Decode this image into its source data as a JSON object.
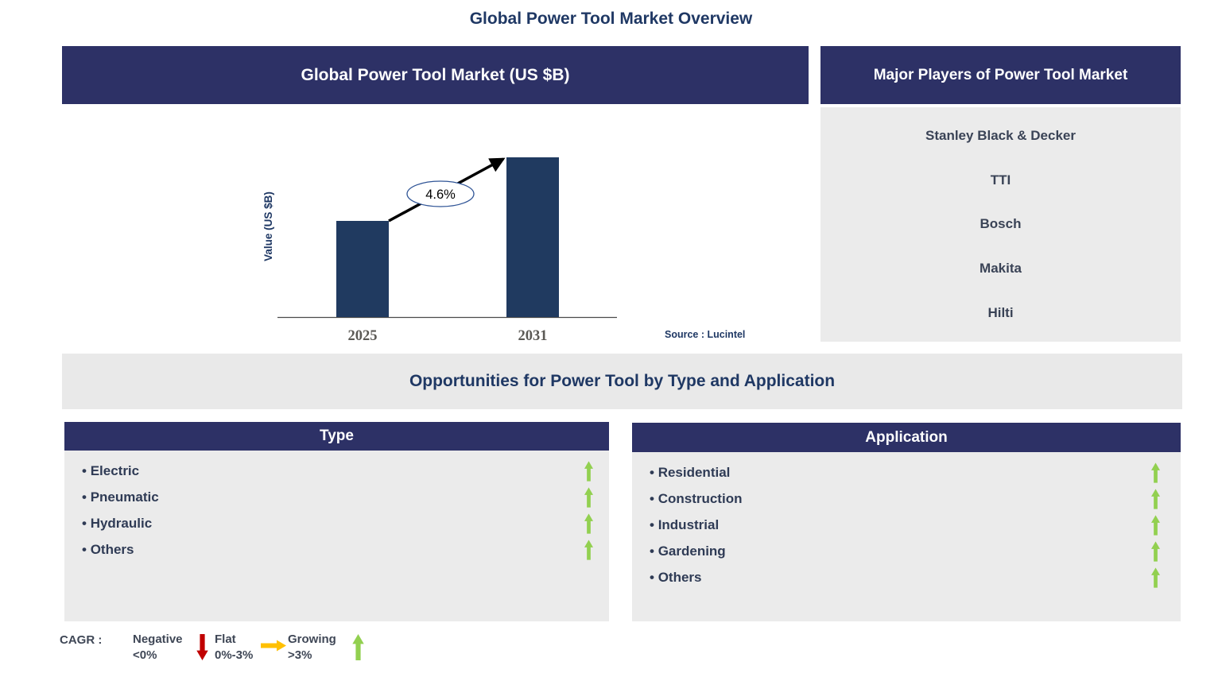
{
  "page": {
    "title": "Global Power Tool Market Overview"
  },
  "market_chart_panel": {
    "header": "Global Power Tool Market (US $B)"
  },
  "chart_data": {
    "type": "bar",
    "title": "Global Power Tool Market (US $B)",
    "ylabel": "Value (US $B)",
    "xlabel": "",
    "categories": [
      "2025",
      "2031"
    ],
    "relative_heights": [
      0.6,
      1.0
    ],
    "values_labeled": false,
    "growth_annotation": "4.6%",
    "bar_color": "#203A60",
    "grid": false,
    "legend_position": "none",
    "source": "Source : Lucintel"
  },
  "major_players": {
    "header": "Major Players of Power Tool Market",
    "items": [
      "Stanley Black & Decker",
      "TTI",
      "Bosch",
      "Makita",
      "Hilti"
    ]
  },
  "opportunities": {
    "title": "Opportunities for Power Tool by Type and Application"
  },
  "type_panel": {
    "header": "Type",
    "items": [
      {
        "label": "Electric",
        "trend": "growing"
      },
      {
        "label": "Pneumatic",
        "trend": "growing"
      },
      {
        "label": "Hydraulic",
        "trend": "growing"
      },
      {
        "label": "Others",
        "trend": "growing"
      }
    ]
  },
  "application_panel": {
    "header": "Application",
    "items": [
      {
        "label": "Residential",
        "trend": "growing"
      },
      {
        "label": "Construction",
        "trend": "growing"
      },
      {
        "label": "Industrial",
        "trend": "growing"
      },
      {
        "label": "Gardening",
        "trend": "growing"
      },
      {
        "label": "Others",
        "trend": "growing"
      }
    ]
  },
  "legend": {
    "prefix": "CAGR :",
    "entries": [
      {
        "label": "Negative",
        "range": "<0%",
        "arrow": "down",
        "color": "#C00000"
      },
      {
        "label": "Flat",
        "range": "0%-3%",
        "arrow": "right",
        "color": "#FFC000"
      },
      {
        "label": "Growing",
        "range": ">3%",
        "arrow": "up",
        "color": "#92D050"
      }
    ]
  },
  "colors": {
    "navy_header": "#2D3166",
    "accent_text": "#1F3864",
    "panel_gray": "#EBEBEB",
    "band_gray": "#E9E9E9",
    "bar_navy": "#203A60",
    "green": "#92D050",
    "red": "#C00000",
    "amber": "#FFC000",
    "year_label_gray": "#5B5955"
  }
}
